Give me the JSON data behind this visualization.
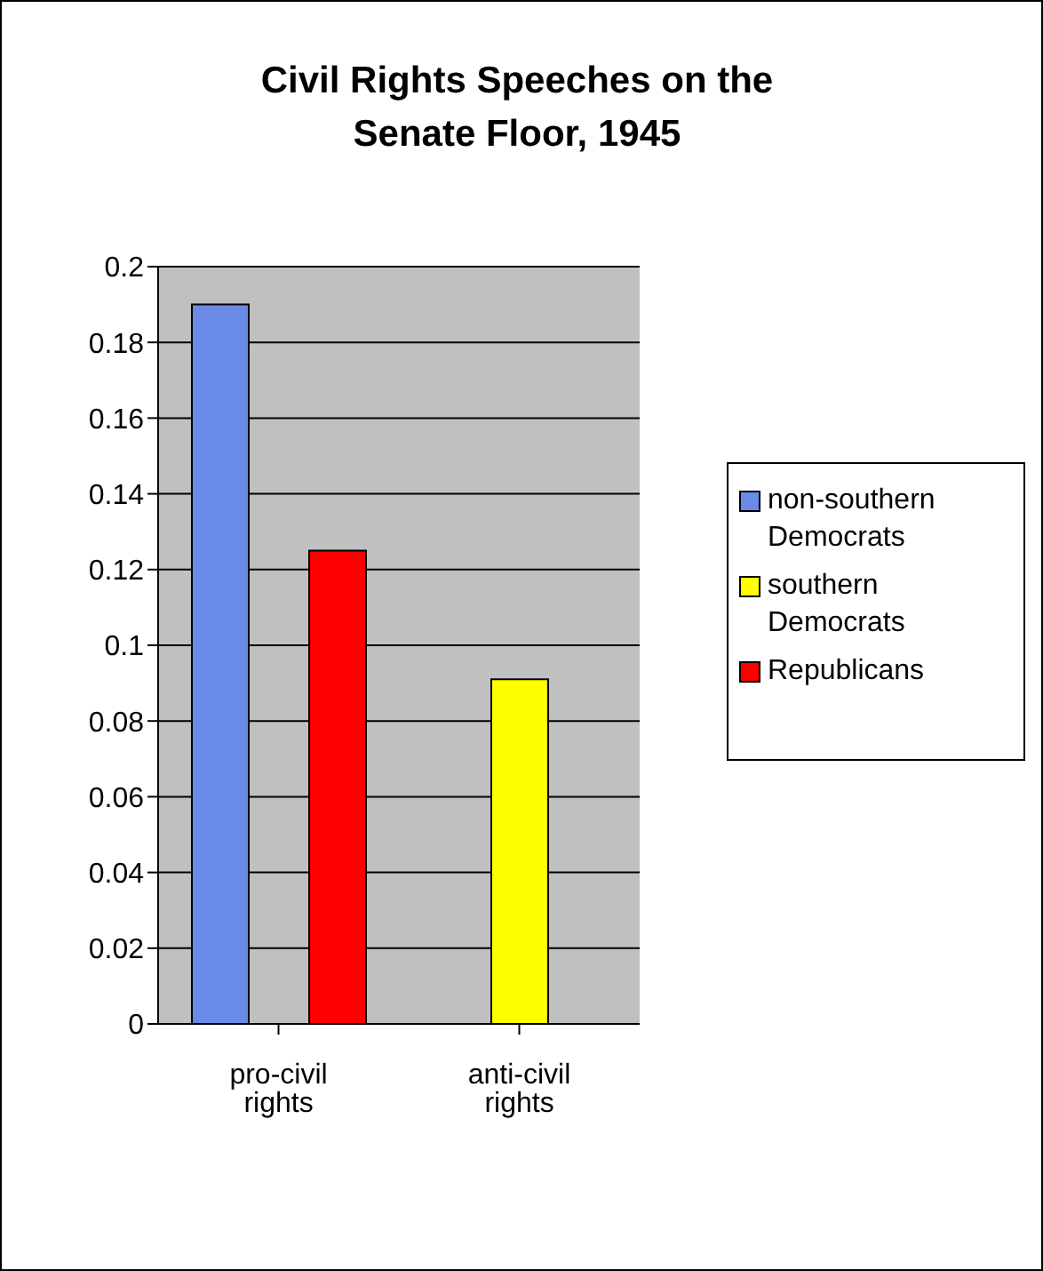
{
  "chart_data": {
    "type": "bar",
    "title": "Civil Rights Speeches on the Senate Floor, 1945",
    "categories": [
      "pro-civil rights",
      "anti-civil rights"
    ],
    "series": [
      {
        "name": "non-southern Democrats",
        "color": "#6a8ae8",
        "values": [
          0.19,
          0
        ]
      },
      {
        "name": "southern Democrats",
        "color": "#ffff00",
        "values": [
          0,
          0.091
        ]
      },
      {
        "name": "Republicans",
        "color": "#ff0000",
        "values": [
          0.125,
          0
        ]
      }
    ],
    "ylim": [
      0,
      0.2
    ],
    "yticks": [
      0,
      0.02,
      0.04,
      0.06,
      0.08,
      0.1,
      0.12,
      0.14,
      0.16,
      0.18,
      0.2
    ],
    "grid": "y",
    "legend": "right"
  }
}
